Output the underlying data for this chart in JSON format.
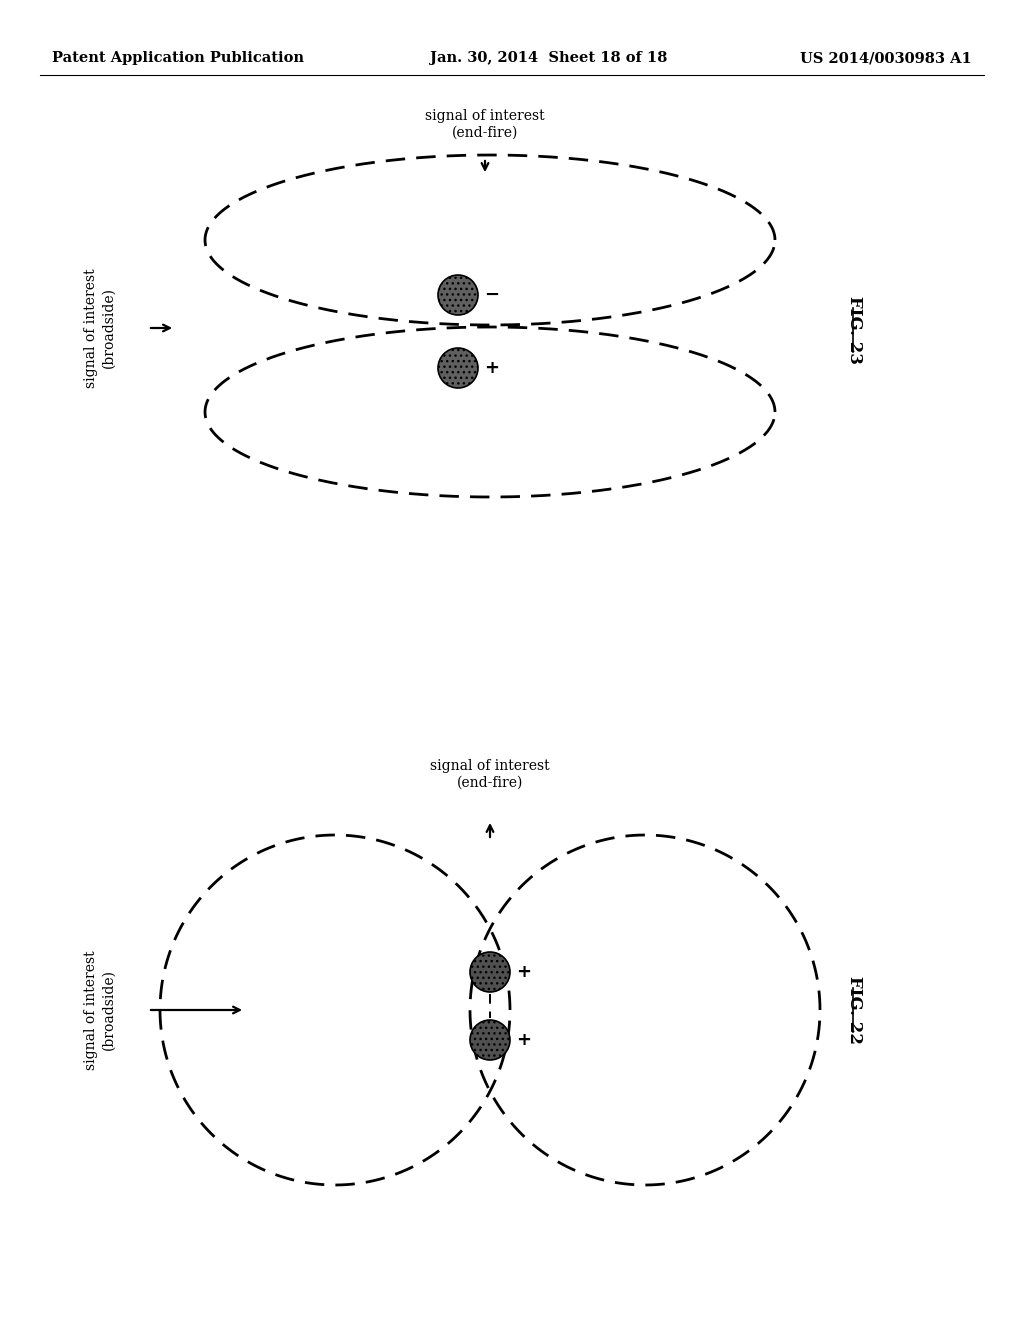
{
  "header_left": "Patent Application Publication",
  "header_mid": "Jan. 30, 2014  Sheet 18 of 18",
  "header_right": "US 2014/0030983 A1",
  "fig23_label": "FIG. 23",
  "fig22_label": "FIG. 22",
  "sig_endfire": "signal of interest\n(end-fire)",
  "sig_broadside": "signal of interest\n(broadside)",
  "bg_color": "#ffffff",
  "line_color": "#000000"
}
